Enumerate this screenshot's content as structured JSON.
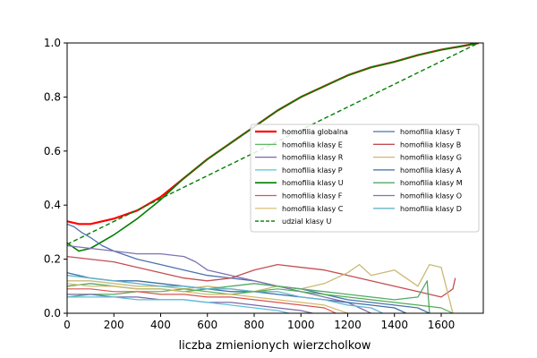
{
  "chart_data": {
    "type": "line",
    "xlabel": "liczba zmienionych wierzcholkow",
    "ylabel": "",
    "xlim": [
      0,
      1780
    ],
    "ylim": [
      0.0,
      1.0
    ],
    "xticks": [
      0,
      200,
      400,
      600,
      800,
      1000,
      1200,
      1400,
      1600
    ],
    "xtick_labels": [
      "0",
      "200",
      "400",
      "600",
      "800",
      "1000",
      "1200",
      "1400",
      "1600"
    ],
    "yticks": [
      0.0,
      0.2,
      0.4,
      0.6,
      0.8,
      1.0
    ],
    "ytick_labels": [
      "0.0",
      "0.2",
      "0.4",
      "0.6",
      "0.8",
      "1.0"
    ],
    "legend_position": "center-right",
    "legend": {
      "col1": [
        "homofilia globalna",
        "homofilia klasy E",
        "homofilia klasy R",
        "homofilia klasy P",
        "homofilia klasy U",
        "homofilia klasy F",
        "homofilia klasy C",
        "udzial klasy U"
      ],
      "col2": [
        "homofilia klasy T",
        "homofilia klasy B",
        "homofilia klasy G",
        "homofilia klasy A",
        "homofilia klasy M",
        "homofilia klasy O",
        "homofilia klasy D"
      ]
    },
    "series": [
      {
        "name": "homofilia globalna",
        "color": "#ff0000",
        "width": 2.2,
        "dash": "",
        "x": [
          0,
          50,
          100,
          200,
          300,
          400,
          500,
          600,
          700,
          800,
          900,
          1000,
          1100,
          1200,
          1300,
          1400,
          1500,
          1600,
          1700,
          1760
        ],
        "y": [
          0.34,
          0.33,
          0.33,
          0.35,
          0.38,
          0.43,
          0.5,
          0.57,
          0.63,
          0.69,
          0.75,
          0.8,
          0.84,
          0.88,
          0.91,
          0.93,
          0.955,
          0.975,
          0.99,
          1.0
        ]
      },
      {
        "name": "homofilia klasy U",
        "color": "#008000",
        "width": 1.6,
        "dash": "",
        "x": [
          0,
          50,
          100,
          200,
          300,
          400,
          500,
          600,
          700,
          800,
          900,
          1000,
          1100,
          1200,
          1300,
          1400,
          1500,
          1600,
          1700,
          1760
        ],
        "y": [
          0.26,
          0.23,
          0.24,
          0.29,
          0.35,
          0.42,
          0.5,
          0.57,
          0.63,
          0.69,
          0.75,
          0.8,
          0.84,
          0.88,
          0.91,
          0.93,
          0.955,
          0.975,
          0.99,
          1.0
        ]
      },
      {
        "name": "udzial klasy U",
        "color": "#008000",
        "width": 1.4,
        "dash": "5,3",
        "x": [
          0,
          1760
        ],
        "y": [
          0.255,
          1.0
        ]
      },
      {
        "name": "homofilia klasy T",
        "color": "#4c72b0",
        "width": 1.3,
        "dash": "",
        "x": [
          0,
          30,
          60,
          100,
          150,
          200,
          300,
          400,
          500,
          600,
          700,
          800,
          900,
          1000,
          1100,
          1200,
          1300,
          1400,
          1500,
          1550
        ],
        "y": [
          0.33,
          0.32,
          0.3,
          0.28,
          0.25,
          0.23,
          0.2,
          0.18,
          0.16,
          0.14,
          0.13,
          0.12,
          0.1,
          0.09,
          0.07,
          0.05,
          0.04,
          0.03,
          0.02,
          0.0
        ]
      },
      {
        "name": "homofilia klasy O",
        "color": "#8172b2",
        "width": 1.3,
        "dash": "",
        "x": [
          0,
          100,
          200,
          300,
          400,
          500,
          550,
          600,
          700,
          800,
          900,
          1000,
          1100,
          1200,
          1300
        ],
        "y": [
          0.25,
          0.24,
          0.23,
          0.22,
          0.22,
          0.21,
          0.19,
          0.16,
          0.14,
          0.12,
          0.1,
          0.08,
          0.06,
          0.04,
          0.0
        ]
      },
      {
        "name": "homofilia klasy B",
        "color": "#c44e52",
        "width": 1.3,
        "dash": "",
        "x": [
          0,
          100,
          200,
          300,
          400,
          500,
          600,
          700,
          800,
          900,
          1000,
          1100,
          1200,
          1300,
          1400,
          1500,
          1600,
          1650,
          1660
        ],
        "y": [
          0.21,
          0.2,
          0.19,
          0.17,
          0.15,
          0.13,
          0.12,
          0.13,
          0.16,
          0.18,
          0.17,
          0.16,
          0.14,
          0.12,
          0.1,
          0.08,
          0.06,
          0.09,
          0.13
        ]
      },
      {
        "name": "homofilia klasy G",
        "color": "#ccb974",
        "width": 1.3,
        "dash": "",
        "x": [
          0,
          100,
          200,
          300,
          400,
          500,
          600,
          700,
          800,
          900,
          1000,
          1100,
          1200,
          1250,
          1300,
          1400,
          1500,
          1550,
          1600,
          1650
        ],
        "y": [
          0.12,
          0.12,
          0.11,
          0.1,
          0.1,
          0.09,
          0.1,
          0.09,
          0.08,
          0.1,
          0.09,
          0.11,
          0.15,
          0.18,
          0.14,
          0.16,
          0.1,
          0.18,
          0.17,
          0.0
        ]
      },
      {
        "name": "homofilia klasy A",
        "color": "#3b6ea8",
        "width": 1.3,
        "dash": "",
        "x": [
          0,
          100,
          200,
          300,
          400,
          500,
          600,
          700,
          800,
          900,
          1000,
          1100,
          1200,
          1300,
          1400,
          1450
        ],
        "y": [
          0.15,
          0.13,
          0.12,
          0.12,
          0.11,
          0.1,
          0.09,
          0.08,
          0.08,
          0.07,
          0.06,
          0.05,
          0.04,
          0.03,
          0.02,
          0.0
        ]
      },
      {
        "name": "homofilia klasy M",
        "color": "#55a868",
        "width": 1.3,
        "dash": "",
        "x": [
          0,
          100,
          200,
          300,
          400,
          500,
          600,
          700,
          800,
          900,
          1000,
          1100,
          1200,
          1300,
          1400,
          1500,
          1540,
          1550
        ],
        "y": [
          0.1,
          0.11,
          0.1,
          0.09,
          0.09,
          0.08,
          0.09,
          0.1,
          0.11,
          0.1,
          0.09,
          0.08,
          0.07,
          0.06,
          0.05,
          0.06,
          0.12,
          0.0
        ]
      },
      {
        "name": "homofilia klasy D",
        "color": "#64b5cd",
        "width": 1.3,
        "dash": "",
        "x": [
          0,
          100,
          200,
          300,
          400,
          500,
          600,
          700,
          800,
          900,
          1000,
          1100,
          1200,
          1300,
          1350
        ],
        "y": [
          0.14,
          0.13,
          0.12,
          0.11,
          0.1,
          0.1,
          0.09,
          0.09,
          0.08,
          0.08,
          0.06,
          0.05,
          0.03,
          0.02,
          0.0
        ]
      },
      {
        "name": "homofilia klasy E",
        "color": "#4caf50",
        "width": 1.2,
        "dash": "",
        "x": [
          0,
          100,
          200,
          300,
          400,
          500,
          600,
          700,
          800,
          900,
          1000,
          1100,
          1200,
          1300,
          1400,
          1500,
          1600,
          1650
        ],
        "y": [
          0.06,
          0.07,
          0.07,
          0.08,
          0.08,
          0.09,
          0.08,
          0.07,
          0.08,
          0.09,
          0.08,
          0.07,
          0.06,
          0.05,
          0.04,
          0.03,
          0.02,
          0.0
        ]
      },
      {
        "name": "homofilia klasy R",
        "color": "#7a68a6",
        "width": 1.2,
        "dash": "",
        "x": [
          0,
          100,
          200,
          300,
          400,
          500,
          600,
          700,
          800,
          900,
          1000,
          1050
        ],
        "y": [
          0.07,
          0.07,
          0.06,
          0.06,
          0.05,
          0.05,
          0.04,
          0.04,
          0.03,
          0.02,
          0.01,
          0.0
        ]
      },
      {
        "name": "homofilia klasy P",
        "color": "#5bc0de",
        "width": 1.2,
        "dash": "",
        "x": [
          0,
          100,
          200,
          300,
          400,
          500,
          600,
          700,
          800,
          900,
          950
        ],
        "y": [
          0.06,
          0.06,
          0.06,
          0.05,
          0.05,
          0.05,
          0.04,
          0.03,
          0.02,
          0.01,
          0.0
        ]
      },
      {
        "name": "homofilia klasy F",
        "color": "#d9534f",
        "width": 1.2,
        "dash": "",
        "x": [
          0,
          100,
          200,
          300,
          400,
          500,
          600,
          700,
          800,
          900,
          1000,
          1100,
          1150
        ],
        "y": [
          0.09,
          0.09,
          0.08,
          0.08,
          0.07,
          0.07,
          0.06,
          0.06,
          0.05,
          0.04,
          0.03,
          0.02,
          0.0
        ]
      },
      {
        "name": "homofilia klasy C",
        "color": "#d4b96a",
        "width": 1.2,
        "dash": "",
        "x": [
          0,
          100,
          200,
          300,
          400,
          500,
          600,
          700,
          800,
          900,
          1000,
          1100,
          1200
        ],
        "y": [
          0.11,
          0.1,
          0.1,
          0.09,
          0.09,
          0.08,
          0.07,
          0.07,
          0.06,
          0.05,
          0.04,
          0.03,
          0.0
        ]
      }
    ]
  }
}
